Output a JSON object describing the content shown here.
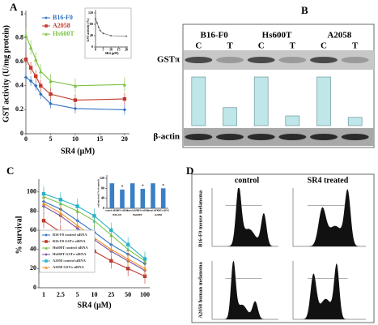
{
  "panel_labels": [
    "A",
    "B",
    "C",
    "D"
  ],
  "chart_data": [
    {
      "type": "line",
      "xlabel": "SR4 (μM)",
      "ylabel": "GST activity (U/mg protein)",
      "x": [
        0,
        1,
        2,
        3,
        5,
        10,
        20
      ],
      "xlim": [
        0,
        21
      ],
      "xticks": [
        0,
        5,
        10,
        15,
        20
      ],
      "ylim": [
        0,
        1
      ],
      "yticks": [
        0,
        0.2,
        0.4,
        0.6,
        0.8,
        1
      ],
      "series": [
        {
          "name": "B16-F0",
          "color": "#2f6fc0",
          "values": [
            0.47,
            0.44,
            0.4,
            0.33,
            0.25,
            0.21,
            0.2
          ],
          "error": 0.04
        },
        {
          "name": "A2058",
          "color": "#c0392b",
          "values": [
            0.62,
            0.55,
            0.48,
            0.4,
            0.33,
            0.28,
            0.29
          ],
          "error": 0.05
        },
        {
          "name": "Hs600T",
          "color": "#7cc242",
          "values": [
            0.82,
            0.72,
            0.62,
            0.52,
            0.44,
            0.4,
            0.41
          ],
          "error": 0.06
        }
      ]
    },
    {
      "type": "line",
      "xlabel": "SR4 (μM)",
      "ylabel": "GST activity (%)",
      "x": [
        0,
        1,
        2,
        3,
        5,
        10,
        20
      ],
      "xlim": [
        0,
        21
      ],
      "xticks": [
        0,
        5,
        10,
        15,
        20
      ],
      "ylim": [
        0,
        120
      ],
      "yticks": [
        0,
        40,
        80,
        120
      ],
      "series": [
        {
          "name": "GST activity",
          "color": "#555555",
          "values": [
            100,
            85,
            70,
            58,
            48,
            40,
            38
          ]
        }
      ]
    },
    {
      "type": "line",
      "xlabel": "SR4 (μM)",
      "ylabel": "% survival",
      "categories": [
        "1",
        "2.5",
        "5",
        "10",
        "25",
        "50",
        "100"
      ],
      "ylim": [
        0,
        110
      ],
      "yticks": [
        0,
        20,
        40,
        60,
        80,
        100
      ],
      "series": [
        {
          "name": "B16-F0 control siRNA",
          "color": "#2f6fc0",
          "values": [
            90,
            82,
            70,
            58,
            45,
            35,
            25
          ],
          "error": 8
        },
        {
          "name": "B16-F0 GSTπ siRNA",
          "color": "#c0392b",
          "values": [
            70,
            58,
            48,
            38,
            28,
            20,
            12
          ],
          "error": 8
        },
        {
          "name": "Hs600T control siRNA",
          "color": "#7cc242",
          "values": [
            95,
            88,
            80,
            70,
            55,
            40,
            28
          ],
          "error": 8
        },
        {
          "name": "Hs600T GSTπ siRNA",
          "color": "#7b4fa0",
          "values": [
            85,
            75,
            62,
            50,
            38,
            28,
            18
          ],
          "error": 8
        },
        {
          "name": "A2058 control siRNA",
          "color": "#2bb3c8",
          "values": [
            98,
            92,
            85,
            75,
            60,
            45,
            30
          ],
          "error": 8
        },
        {
          "name": "A2058 GSTπ siRNA",
          "color": "#f0932b",
          "values": [
            88,
            78,
            65,
            52,
            40,
            30,
            20
          ],
          "error": 8
        }
      ]
    },
    {
      "type": "bar",
      "ylabel": "cell survival (% of control)",
      "categories": [
        "control siRNA",
        "GSTπ siRNA",
        "control siRNA",
        "GSTπ siRNA",
        "control siRNA",
        "GSTπ siRNA"
      ],
      "groups": [
        "B16-F0",
        "Hs600T",
        "A2058"
      ],
      "values": [
        100,
        75,
        100,
        78,
        100,
        80
      ],
      "color": "#3a7fc4",
      "ylim": [
        0,
        120
      ],
      "yticks": [
        0,
        40,
        80,
        120
      ],
      "annotations": [
        "*",
        "*",
        "*"
      ]
    },
    {
      "type": "bar",
      "categories": [
        "C",
        "T",
        "C",
        "T",
        "C",
        "T"
      ],
      "groups": [
        "B16-F0",
        "Hs600T",
        "A2058"
      ],
      "bands": [
        "GSTπ",
        "β-actin"
      ],
      "values": [
        100,
        37,
        100,
        20,
        100,
        17
      ],
      "color": "#bfe6e8",
      "ylim": [
        0,
        100
      ]
    }
  ],
  "flow": {
    "columns": [
      "control",
      "SR4 treated"
    ],
    "rows": [
      "B16-F0 mouse melanoma",
      "A2058 human melanoma"
    ]
  }
}
